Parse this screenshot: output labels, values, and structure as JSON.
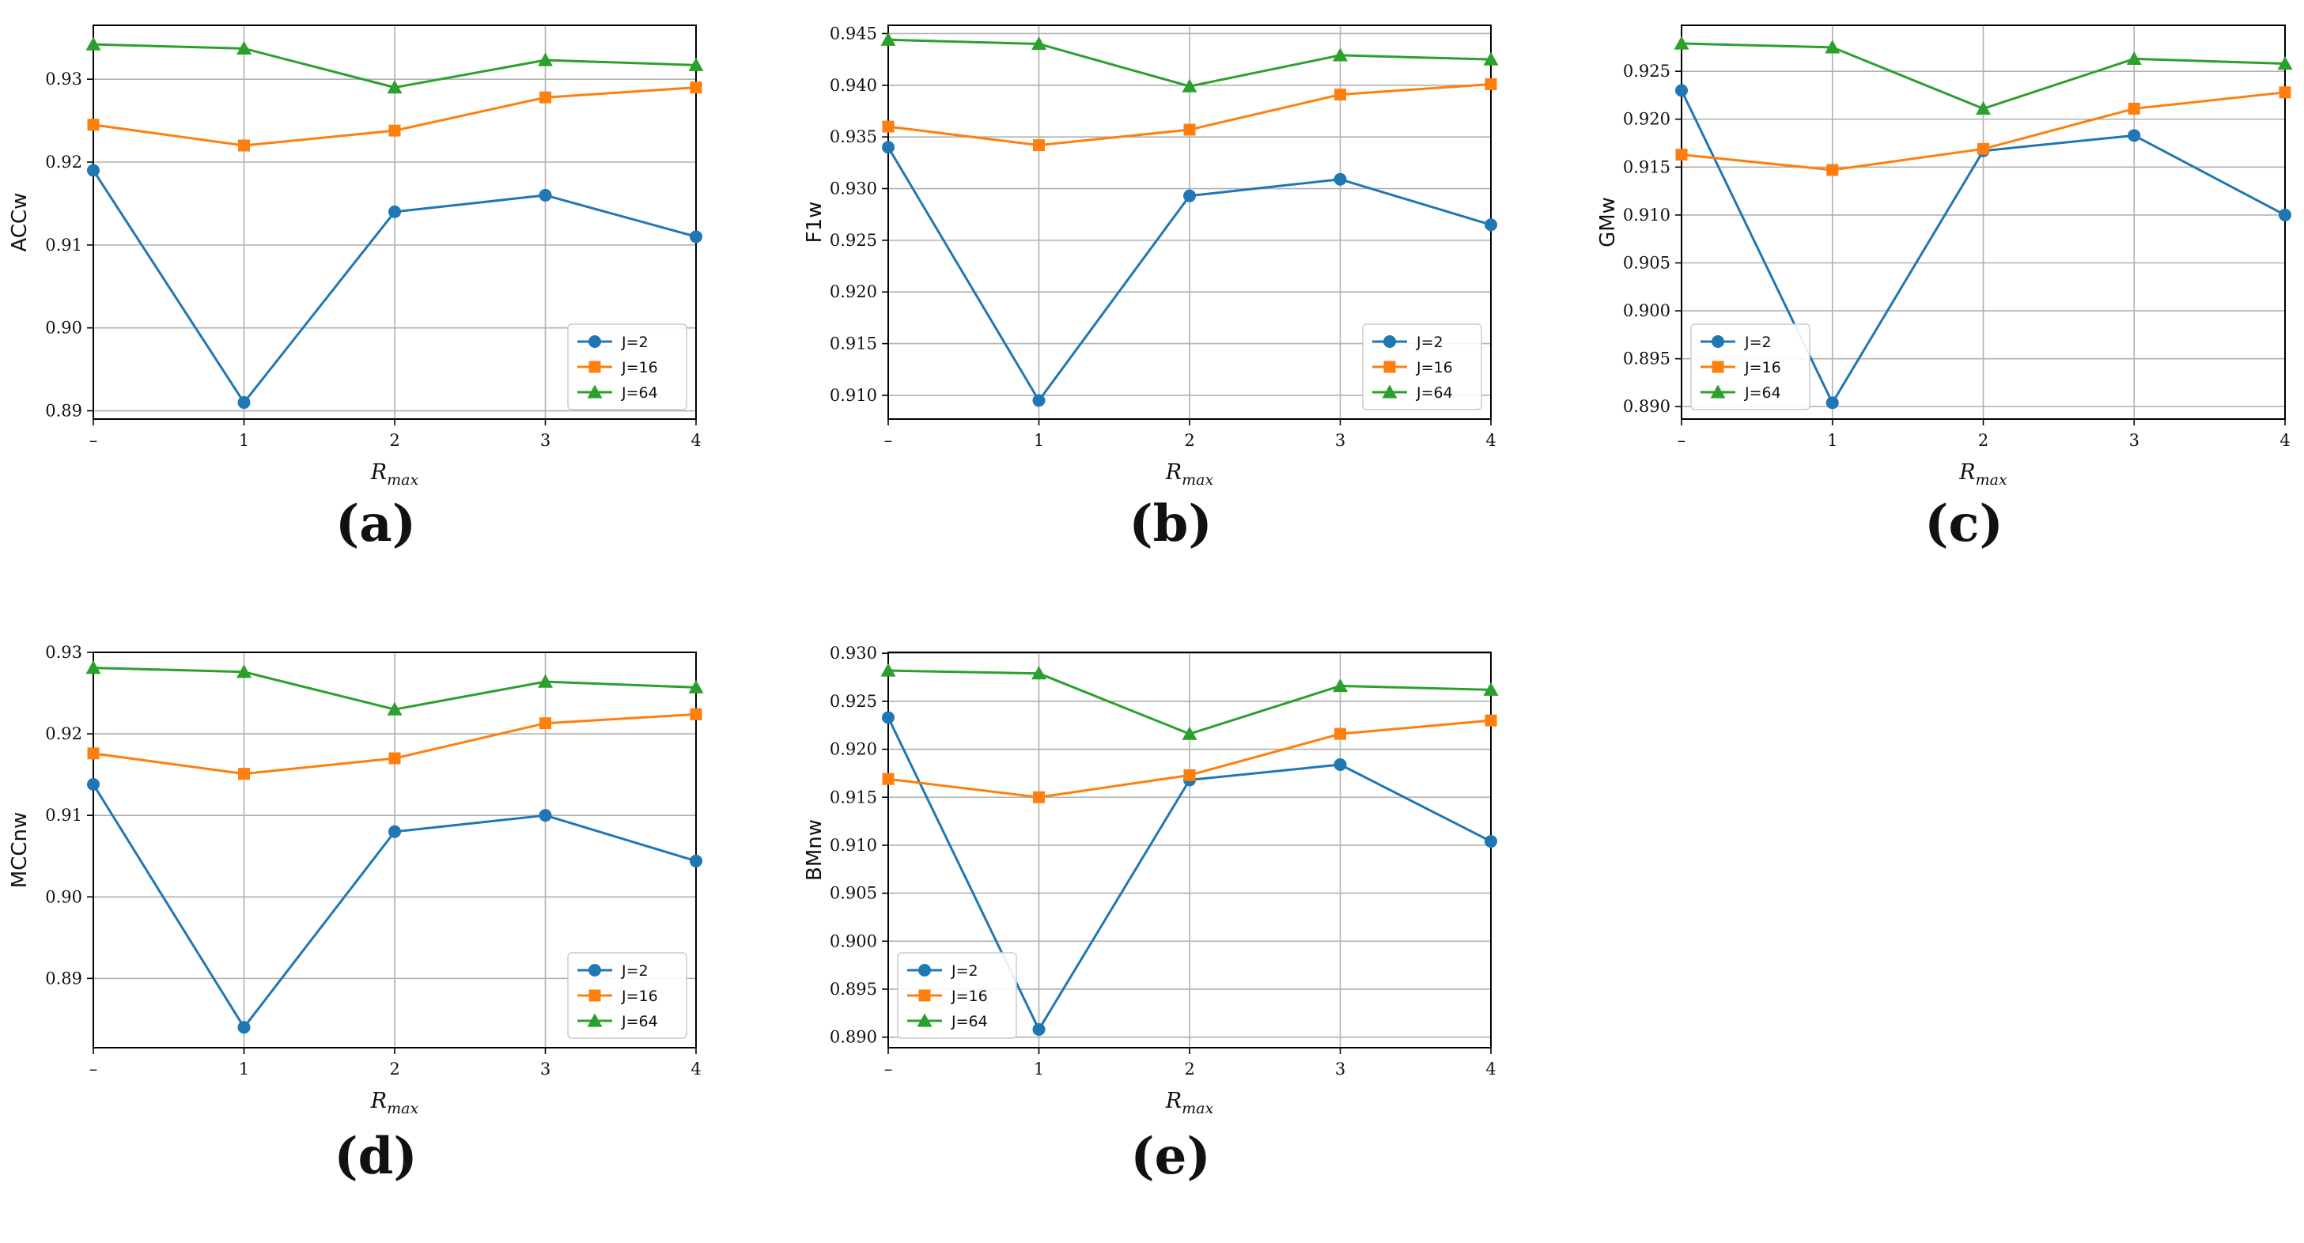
{
  "chart_data": [
    {
      "type": "line",
      "id": "a",
      "caption": "(a)",
      "ylabel": "ACCw",
      "xlabel_main": "R",
      "xlabel_sub": "max",
      "x": [
        0,
        1,
        2,
        3,
        4
      ],
      "xtick_labels": [
        "–",
        "1",
        "2",
        "3",
        "4"
      ],
      "ylim": [
        0.889,
        0.9365
      ],
      "yticks": [
        0.89,
        0.9,
        0.91,
        0.92,
        0.93
      ],
      "ytick_labels": [
        "0.89",
        "0.90",
        "0.91",
        "0.92",
        "0.93"
      ],
      "legend_position": "lower-right",
      "grid": true,
      "series": [
        {
          "name": "J=2",
          "color": "#1f77b4",
          "marker": "circle",
          "values": [
            0.919,
            0.891,
            0.914,
            0.916,
            0.911
          ]
        },
        {
          "name": "J=16",
          "color": "#ff7f0e",
          "marker": "square",
          "values": [
            0.9245,
            0.922,
            0.9238,
            0.9278,
            0.929
          ]
        },
        {
          "name": "J=64",
          "color": "#2ca02c",
          "marker": "triangle",
          "values": [
            0.9342,
            0.9337,
            0.929,
            0.9323,
            0.9317
          ]
        }
      ]
    },
    {
      "type": "line",
      "id": "b",
      "caption": "(b)",
      "ylabel": "F1w",
      "xlabel_main": "R",
      "xlabel_sub": "max",
      "x": [
        0,
        1,
        2,
        3,
        4
      ],
      "xtick_labels": [
        "–",
        "1",
        "2",
        "3",
        "4"
      ],
      "ylim": [
        0.9077,
        0.9458
      ],
      "yticks": [
        0.91,
        0.915,
        0.92,
        0.925,
        0.93,
        0.935,
        0.94,
        0.945
      ],
      "ytick_labels": [
        "0.910",
        "0.915",
        "0.920",
        "0.925",
        "0.930",
        "0.935",
        "0.940",
        "0.945"
      ],
      "legend_position": "lower-right",
      "grid": true,
      "series": [
        {
          "name": "J=2",
          "color": "#1f77b4",
          "marker": "circle",
          "values": [
            0.934,
            0.9095,
            0.9293,
            0.9309,
            0.9265
          ]
        },
        {
          "name": "J=16",
          "color": "#ff7f0e",
          "marker": "square",
          "values": [
            0.936,
            0.9342,
            0.9357,
            0.9391,
            0.9401
          ]
        },
        {
          "name": "J=64",
          "color": "#2ca02c",
          "marker": "triangle",
          "values": [
            0.9444,
            0.944,
            0.9399,
            0.9429,
            0.9425
          ]
        }
      ]
    },
    {
      "type": "line",
      "id": "c",
      "caption": "(c)",
      "ylabel": "GMw",
      "xlabel_main": "R",
      "xlabel_sub": "max",
      "x": [
        0,
        1,
        2,
        3,
        4
      ],
      "xtick_labels": [
        "–",
        "1",
        "2",
        "3",
        "4"
      ],
      "ylim": [
        0.8887,
        0.9298
      ],
      "yticks": [
        0.89,
        0.895,
        0.9,
        0.905,
        0.91,
        0.915,
        0.92,
        0.925
      ],
      "ytick_labels": [
        "0.890",
        "0.895",
        "0.900",
        "0.905",
        "0.910",
        "0.915",
        "0.920",
        "0.925"
      ],
      "legend_position": "lower-left",
      "grid": true,
      "series": [
        {
          "name": "J=2",
          "color": "#1f77b4",
          "marker": "circle",
          "values": [
            0.923,
            0.8904,
            0.9167,
            0.9183,
            0.91
          ]
        },
        {
          "name": "J=16",
          "color": "#ff7f0e",
          "marker": "square",
          "values": [
            0.9163,
            0.9147,
            0.9169,
            0.9211,
            0.9228
          ]
        },
        {
          "name": "J=64",
          "color": "#2ca02c",
          "marker": "triangle",
          "values": [
            0.9279,
            0.9275,
            0.9211,
            0.9263,
            0.9258
          ]
        }
      ]
    },
    {
      "type": "line",
      "id": "d",
      "caption": "(d)",
      "ylabel": "MCCnw",
      "xlabel_main": "R",
      "xlabel_sub": "max",
      "x": [
        0,
        1,
        2,
        3,
        4
      ],
      "xtick_labels": [
        "–",
        "1",
        "2",
        "3",
        "4"
      ],
      "ylim": [
        0.8815,
        0.93
      ],
      "yticks": [
        0.89,
        0.9,
        0.91,
        0.92,
        0.93
      ],
      "ytick_labels": [
        "0.89",
        "0.90",
        "0.91",
        "0.92",
        "0.93"
      ],
      "legend_position": "lower-right",
      "grid": true,
      "series": [
        {
          "name": "J=2",
          "color": "#1f77b4",
          "marker": "circle",
          "values": [
            0.9138,
            0.884,
            0.908,
            0.91,
            0.9044
          ]
        },
        {
          "name": "J=16",
          "color": "#ff7f0e",
          "marker": "square",
          "values": [
            0.9176,
            0.9151,
            0.917,
            0.9213,
            0.9224
          ]
        },
        {
          "name": "J=64",
          "color": "#2ca02c",
          "marker": "triangle",
          "values": [
            0.9281,
            0.9276,
            0.923,
            0.9264,
            0.9257
          ]
        }
      ]
    },
    {
      "type": "line",
      "id": "e",
      "caption": "(e)",
      "ylabel": "BMnw",
      "xlabel_main": "R",
      "xlabel_sub": "max",
      "x": [
        0,
        1,
        2,
        3,
        4
      ],
      "xtick_labels": [
        "–",
        "1",
        "2",
        "3",
        "4"
      ],
      "ylim": [
        0.8889,
        0.9301
      ],
      "yticks": [
        0.89,
        0.895,
        0.9,
        0.905,
        0.91,
        0.915,
        0.92,
        0.925,
        0.93
      ],
      "ytick_labels": [
        "0.890",
        "0.895",
        "0.900",
        "0.905",
        "0.910",
        "0.915",
        "0.920",
        "0.925",
        "0.930"
      ],
      "legend_position": "lower-left",
      "grid": true,
      "series": [
        {
          "name": "J=2",
          "color": "#1f77b4",
          "marker": "circle",
          "values": [
            0.9233,
            0.8908,
            0.9168,
            0.9184,
            0.9104
          ]
        },
        {
          "name": "J=16",
          "color": "#ff7f0e",
          "marker": "square",
          "values": [
            0.9169,
            0.915,
            0.9173,
            0.9216,
            0.923
          ]
        },
        {
          "name": "J=64",
          "color": "#2ca02c",
          "marker": "triangle",
          "values": [
            0.9282,
            0.9279,
            0.9216,
            0.9266,
            0.9262
          ]
        }
      ]
    }
  ]
}
